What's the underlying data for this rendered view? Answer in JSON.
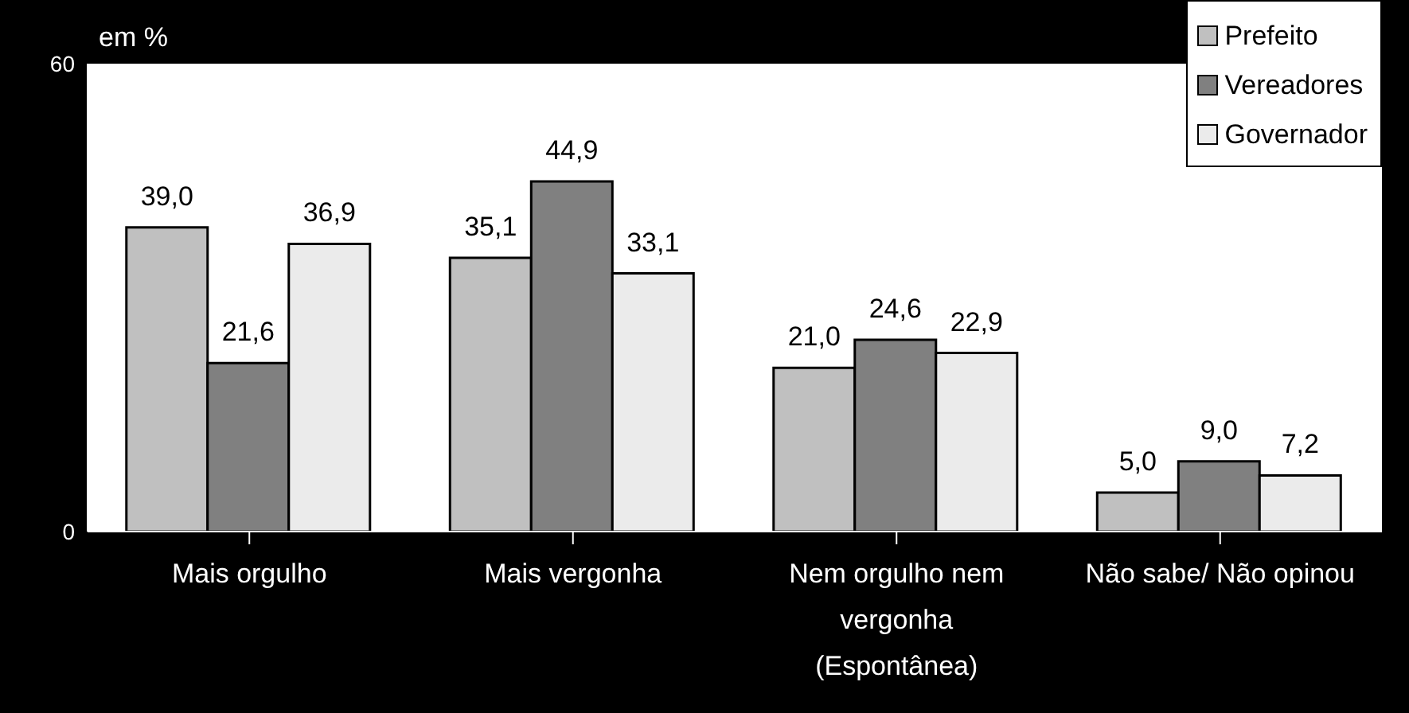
{
  "chart_data": {
    "type": "bar",
    "ylabel": "em %",
    "categories": [
      "Mais orgulho",
      "Mais vergonha",
      "Nem orgulho nem vergonha (Espontânea)",
      "Não sabe/ Não opinou"
    ],
    "series": [
      {
        "name": "Prefeito",
        "color": "#c0c0c0",
        "values": [
          39.0,
          35.1,
          21.0,
          5.0
        ],
        "value_labels": [
          "39,0",
          "35,1",
          "21,0",
          "5,0"
        ]
      },
      {
        "name": "Vereadores",
        "color": "#808080",
        "values": [
          21.6,
          44.9,
          24.6,
          9.0
        ],
        "value_labels": [
          "21,6",
          "44,9",
          "24,6",
          "9,0"
        ]
      },
      {
        "name": "Governador",
        "color": "#ebebeb",
        "values": [
          36.9,
          33.1,
          22.9,
          7.2
        ],
        "value_labels": [
          "36,9",
          "33,1",
          "22,9",
          "7,2"
        ]
      }
    ],
    "ylim": [
      0,
      60
    ],
    "yticks": [
      0,
      60
    ],
    "grid": false,
    "legend": "top right"
  }
}
